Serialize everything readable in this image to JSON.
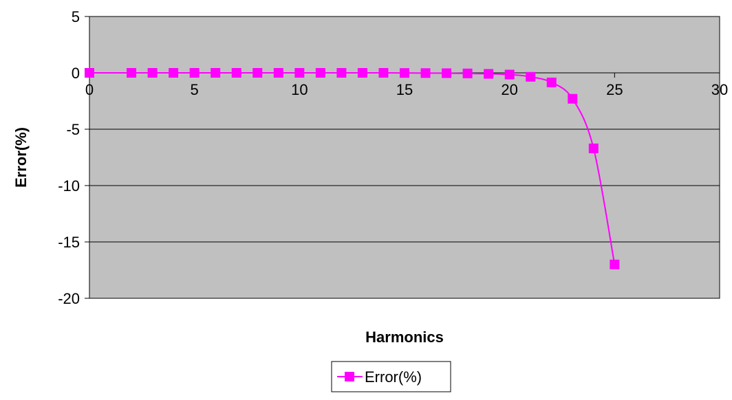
{
  "chart_data": {
    "type": "line",
    "title": "",
    "xlabel": "Harmonics",
    "ylabel": "Error(%)",
    "xlim": [
      0,
      30
    ],
    "ylim": [
      -20,
      5
    ],
    "x_ticks": [
      "0",
      "5",
      "10",
      "15",
      "20",
      "25",
      "30"
    ],
    "y_ticks": [
      "5",
      "0",
      "-5",
      "-10",
      "-15",
      "-20"
    ],
    "grid": "horizontal",
    "legend_position": "bottom",
    "plot_background": "#c0c0c0",
    "series": [
      {
        "name": "Error(%)",
        "color": "#ff00ff",
        "marker": "square",
        "smooth": true,
        "x": [
          0,
          2,
          3,
          4,
          5,
          6,
          7,
          8,
          9,
          10,
          11,
          12,
          13,
          14,
          15,
          16,
          17,
          18,
          19,
          20,
          21,
          22,
          23,
          24,
          25
        ],
        "y": [
          0,
          0,
          0,
          0,
          0,
          0,
          0,
          0,
          0,
          0,
          0,
          0,
          0,
          0,
          -0.01,
          -0.02,
          -0.03,
          -0.05,
          -0.09,
          -0.15,
          -0.35,
          -0.85,
          -2.3,
          -6.7,
          -17
        ]
      }
    ]
  }
}
